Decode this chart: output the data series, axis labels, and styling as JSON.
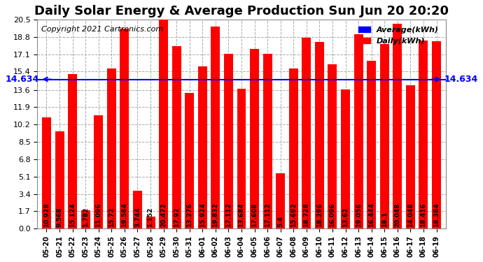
{
  "title": "Daily Solar Energy & Average Production Sun Jun 20 20:20",
  "copyright": "Copyright 2021 Cartronics.com",
  "legend_avg": "Average(kWh)",
  "legend_daily": "Daily(kWh)",
  "average_value": 14.634,
  "categories": [
    "05-20",
    "05-21",
    "05-22",
    "05-23",
    "05-24",
    "05-25",
    "05-26",
    "05-27",
    "05-28",
    "05-29",
    "05-30",
    "05-31",
    "06-01",
    "06-02",
    "06-03",
    "06-04",
    "06-05",
    "06-06",
    "06-07",
    "06-08",
    "06-09",
    "06-10",
    "06-11",
    "06-12",
    "06-13",
    "06-14",
    "06-15",
    "06-16",
    "06-17",
    "06-18",
    "06-19"
  ],
  "values": [
    10.928,
    9.568,
    15.124,
    1.782,
    11.096,
    15.72,
    19.584,
    3.744,
    1.152,
    20.472,
    17.92,
    13.276,
    15.924,
    19.832,
    17.112,
    13.684,
    17.608,
    17.112,
    5.4,
    15.692,
    18.728,
    18.296,
    16.096,
    13.62,
    19.056,
    16.444,
    18.1,
    20.048,
    14.048,
    18.416,
    18.384
  ],
  "bar_color": "#ff0000",
  "avg_line_color": "#0000ff",
  "background_color": "#ffffff",
  "grid_color": "#aaaaaa",
  "ylim": [
    0.0,
    20.5
  ],
  "yticks": [
    0.0,
    1.7,
    3.4,
    5.1,
    6.8,
    8.5,
    10.2,
    11.9,
    13.6,
    15.4,
    17.1,
    18.8,
    20.5
  ],
  "title_fontsize": 13,
  "copyright_fontsize": 8,
  "bar_label_fontsize": 6.5,
  "avg_label": "14.634",
  "avg_label_fontsize": 9
}
